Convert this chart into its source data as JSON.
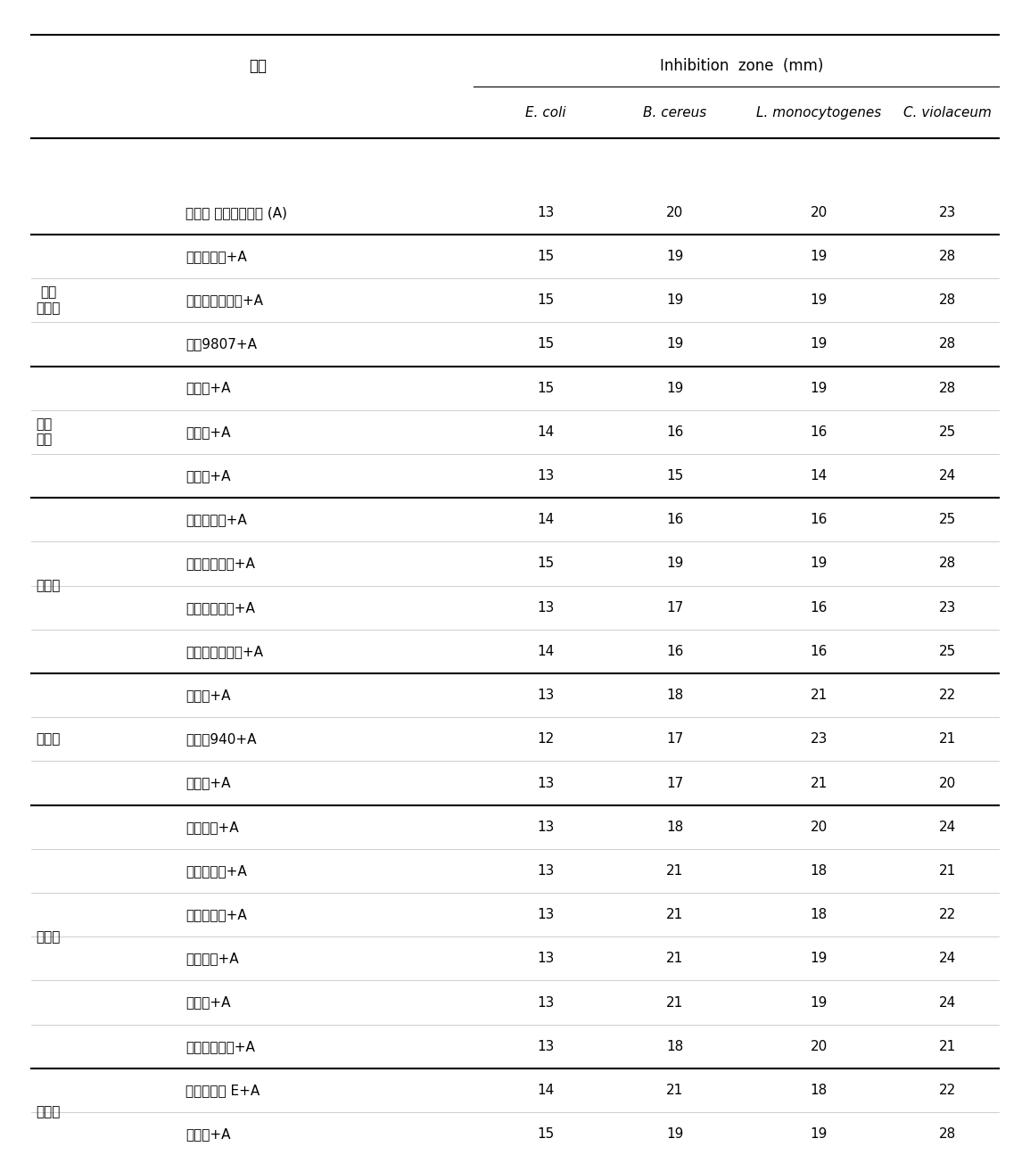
{
  "header_main": "Inhibition zone (mm)",
  "header_sub_label": "성분",
  "col_headers": [
    "E. coli",
    "B. cereus",
    "L. monocytogenes",
    "C. violaceum"
  ],
  "rows": [
    {
      "group": "",
      "ingredient": "개발된 항균복합소재 (A)",
      "values": [
        13,
        20,
        20,
        23
      ],
      "thick_above": true,
      "thick_below": false
    },
    {
      "group": "계면\n활성제",
      "ingredient": "코코베타인+A",
      "values": [
        15,
        19,
        19,
        28
      ],
      "thick_above": false,
      "thick_below": false
    },
    {
      "group": "",
      "ingredient": "애플계면활성제+A",
      "values": [
        15,
        19,
        19,
        28
      ],
      "thick_above": false,
      "thick_below": false
    },
    {
      "group": "",
      "ingredient": "코륨9807+A",
      "values": [
        15,
        19,
        19,
        28
      ],
      "thick_above": false,
      "thick_below": true
    },
    {
      "group": "현탁\n화제",
      "ingredient": "구아검+A",
      "values": [
        15,
        19,
        19,
        28
      ],
      "thick_above": false,
      "thick_below": false
    },
    {
      "group": "",
      "ingredient": "잣탄검+A",
      "values": [
        14,
        16,
        16,
        25
      ],
      "thick_above": false,
      "thick_below": false
    },
    {
      "group": "",
      "ingredient": "젠라퇴+A",
      "values": [
        13,
        15,
        14,
        24
      ],
      "thick_above": false,
      "thick_below": true
    },
    {
      "group": "유화제",
      "ingredient": "세털알코올+A",
      "values": [
        14,
        16,
        16,
        25
      ],
      "thick_above": false,
      "thick_below": false
    },
    {
      "group": "",
      "ingredient": "솔루빌라이저+A",
      "values": [
        15,
        19,
        19,
        28
      ],
      "thick_above": false,
      "thick_below": false
    },
    {
      "group": "",
      "ingredient": "올리브리케드+A",
      "values": [
        13,
        17,
        16,
        23
      ],
      "thick_above": false,
      "thick_below": false
    },
    {
      "group": "",
      "ingredient": "레시틴프리미엄+A",
      "values": [
        14,
        16,
        16,
        25
      ],
      "thick_above": false,
      "thick_below": true
    },
    {
      "group": "점증제",
      "ingredient": "페물린+A",
      "values": [
        13,
        18,
        21,
        22
      ],
      "thick_above": false,
      "thick_below": false
    },
    {
      "group": "",
      "ingredient": "카보머940+A",
      "values": [
        12,
        17,
        23,
        21
      ],
      "thick_above": false,
      "thick_below": false
    },
    {
      "group": "",
      "ingredient": "하이셀+A",
      "values": [
        13,
        17,
        21,
        20
      ],
      "thick_above": false,
      "thick_below": true
    },
    {
      "group": "보습제",
      "ingredient": "글리세린+A",
      "values": [
        13,
        18,
        20,
        24
      ],
      "thick_above": false,
      "thick_below": false
    },
    {
      "group": "",
      "ingredient": "세라마이드+A",
      "values": [
        13,
        21,
        18,
        21
      ],
      "thick_above": false,
      "thick_below": false
    },
    {
      "group": "",
      "ingredient": "히아루론산+A",
      "values": [
        13,
        21,
        18,
        22
      ],
      "thick_above": false,
      "thick_below": false
    },
    {
      "group": "",
      "ingredient": "알란토인+A",
      "values": [
        13,
        21,
        19,
        24
      ],
      "thick_above": false,
      "thick_below": false
    },
    {
      "group": "",
      "ingredient": "트레하+A",
      "values": [
        13,
        21,
        19,
        24
      ],
      "thick_above": false,
      "thick_below": false
    },
    {
      "group": "",
      "ingredient": "알로에베라곊+A",
      "values": [
        13,
        18,
        20,
        21
      ],
      "thick_above": false,
      "thick_below": true
    },
    {
      "group": "보존제",
      "ingredient": "천연비타민 E+A",
      "values": [
        14,
        21,
        18,
        22
      ],
      "thick_above": false,
      "thick_below": false
    },
    {
      "group": "",
      "ingredient": "나프리+A",
      "values": [
        15,
        19,
        19,
        28
      ],
      "thick_above": false,
      "thick_below": true
    }
  ],
  "group_rows": {
    "계면\n활성제": [
      1,
      3
    ],
    "현탁\n화제": [
      4,
      6
    ],
    "유화제": [
      7,
      10
    ],
    "점증제": [
      11,
      13
    ],
    "보습제": [
      14,
      19
    ],
    "보존제": [
      20,
      21
    ]
  },
  "thick_lines_after": [
    0,
    3,
    6,
    10,
    13,
    19,
    21
  ],
  "background_color": "#ffffff",
  "text_color": "#000000",
  "font_size": 11,
  "font_size_header": 12
}
